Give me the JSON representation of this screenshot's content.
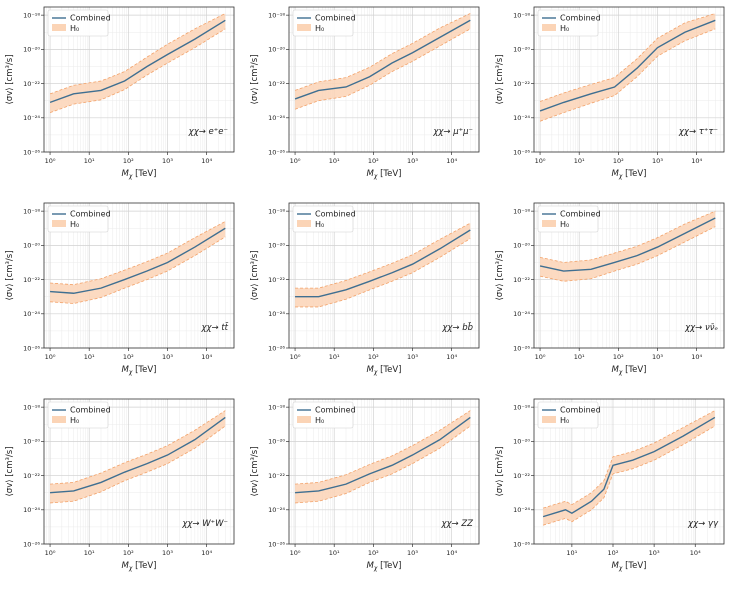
{
  "chart_data": [
    {
      "type": "line",
      "title": "",
      "channel": "χχ→ e⁺e⁻",
      "xlabel": "M_χ [TeV]",
      "ylabel": "⟨σv⟩ [cm³/s]",
      "xscale": "log",
      "yscale": "log",
      "xlim": [
        0.7,
        50000
      ],
      "ylim": [
        1e-26,
        3e-18
      ],
      "x_ticks": [
        "10⁰",
        "10¹",
        "10²",
        "10³",
        "10⁴"
      ],
      "y_ticks": [
        "10⁻²⁶",
        "10⁻²⁴",
        "10⁻²²",
        "10⁻²⁰",
        "10⁻¹⁸"
      ],
      "legend": [
        "Combined",
        "H₀"
      ],
      "legend_loc": "upper-left",
      "grid": true,
      "series": [
        {
          "name": "Combined",
          "x": [
            1,
            4,
            20,
            80,
            300,
            1000,
            5000,
            30000
          ],
          "y_log10": [
            -23.1,
            -22.6,
            -22.4,
            -21.85,
            -21.0,
            -20.3,
            -19.4,
            -18.3
          ]
        }
      ],
      "band": {
        "name": "H₀",
        "x": [
          1,
          4,
          20,
          80,
          300,
          1000,
          5000,
          30000
        ],
        "lower_log10": [
          -23.7,
          -23.2,
          -22.95,
          -22.35,
          -21.5,
          -20.8,
          -19.9,
          -18.8
        ],
        "upper_log10": [
          -22.6,
          -22.1,
          -21.85,
          -21.3,
          -20.45,
          -19.7,
          -18.8,
          -17.9
        ]
      }
    },
    {
      "type": "line",
      "title": "",
      "channel": "χχ→ μ⁺μ⁻",
      "xlabel": "M_χ [TeV]",
      "ylabel": "⟨σv⟩ [cm³/s]",
      "xscale": "log",
      "yscale": "log",
      "xlim": [
        0.7,
        50000
      ],
      "ylim": [
        1e-26,
        3e-18
      ],
      "x_ticks": [
        "10⁰",
        "10¹",
        "10²",
        "10³",
        "10⁴"
      ],
      "y_ticks": [
        "10⁻²⁶",
        "10⁻²⁴",
        "10⁻²²",
        "10⁻²⁰",
        "10⁻¹⁸"
      ],
      "legend": [
        "Combined",
        "H₀"
      ],
      "legend_loc": "upper-left",
      "grid": true,
      "series": [
        {
          "name": "Combined",
          "x": [
            1,
            4,
            20,
            80,
            300,
            1000,
            5000,
            30000
          ],
          "y_log10": [
            -22.9,
            -22.4,
            -22.2,
            -21.6,
            -20.8,
            -20.2,
            -19.3,
            -18.3
          ]
        }
      ],
      "band": {
        "name": "H₀",
        "x": [
          1,
          4,
          20,
          80,
          300,
          1000,
          5000,
          30000
        ],
        "lower_log10": [
          -23.5,
          -23.0,
          -22.75,
          -22.1,
          -21.3,
          -20.7,
          -19.8,
          -18.8
        ],
        "upper_log10": [
          -22.4,
          -21.9,
          -21.65,
          -21.05,
          -20.25,
          -19.65,
          -18.75,
          -17.9
        ]
      }
    },
    {
      "type": "line",
      "title": "",
      "channel": "χχ→ τ⁺τ⁻",
      "xlabel": "M_χ [TeV]",
      "ylabel": "⟨σv⟩ [cm³/s]",
      "xscale": "log",
      "yscale": "log",
      "xlim": [
        0.7,
        50000
      ],
      "ylim": [
        1e-26,
        3e-18
      ],
      "x_ticks": [
        "10⁰",
        "10¹",
        "10²",
        "10³",
        "10⁴"
      ],
      "y_ticks": [
        "10⁻²⁶",
        "10⁻²⁴",
        "10⁻²²",
        "10⁻²⁰",
        "10⁻¹⁸"
      ],
      "legend": [
        "Combined",
        "H₀"
      ],
      "legend_loc": "upper-left",
      "grid": true,
      "series": [
        {
          "name": "Combined",
          "x": [
            1,
            4,
            20,
            80,
            300,
            1000,
            5000,
            30000
          ],
          "y_log10": [
            -23.6,
            -23.1,
            -22.6,
            -22.2,
            -21.1,
            -19.9,
            -19.0,
            -18.3
          ]
        }
      ],
      "band": {
        "name": "H₀",
        "x": [
          1,
          4,
          20,
          80,
          300,
          1000,
          5000,
          30000
        ],
        "lower_log10": [
          -24.2,
          -23.7,
          -23.15,
          -22.7,
          -21.6,
          -20.4,
          -19.5,
          -18.8
        ],
        "upper_log10": [
          -23.05,
          -22.55,
          -22.05,
          -21.65,
          -20.55,
          -19.35,
          -18.45,
          -17.9
        ]
      }
    },
    {
      "type": "line",
      "title": "",
      "channel": "χχ→ tt̄",
      "xlabel": "M_χ [TeV]",
      "ylabel": "⟨σv⟩ [cm³/s]",
      "xscale": "log",
      "yscale": "log",
      "xlim": [
        0.7,
        50000
      ],
      "ylim": [
        1e-26,
        3e-18
      ],
      "x_ticks": [
        "10⁰",
        "10¹",
        "10²",
        "10³",
        "10⁴"
      ],
      "y_ticks": [
        "10⁻²⁶",
        "10⁻²⁴",
        "10⁻²²",
        "10⁻²⁰",
        "10⁻¹⁸"
      ],
      "legend": [
        "Combined",
        "H₀"
      ],
      "legend_loc": "upper-left",
      "grid": true,
      "series": [
        {
          "name": "Combined",
          "x": [
            1,
            4,
            20,
            80,
            300,
            1000,
            5000,
            30000
          ],
          "y_log10": [
            -22.7,
            -22.8,
            -22.5,
            -22.0,
            -21.5,
            -21.0,
            -20.1,
            -19.0
          ]
        }
      ],
      "band": {
        "name": "H₀",
        "x": [
          1,
          4,
          20,
          80,
          300,
          1000,
          5000,
          30000
        ],
        "lower_log10": [
          -23.3,
          -23.4,
          -23.05,
          -22.5,
          -22.0,
          -21.5,
          -20.6,
          -19.5
        ],
        "upper_log10": [
          -22.2,
          -22.3,
          -21.95,
          -21.45,
          -20.95,
          -20.45,
          -19.55,
          -18.6
        ]
      }
    },
    {
      "type": "line",
      "title": "",
      "channel": "χχ→ bb̄",
      "xlabel": "M_χ [TeV]",
      "ylabel": "⟨σv⟩ [cm³/s]",
      "xscale": "log",
      "yscale": "log",
      "xlim": [
        0.7,
        50000
      ],
      "ylim": [
        1e-26,
        3e-18
      ],
      "x_ticks": [
        "10⁰",
        "10¹",
        "10²",
        "10³",
        "10⁴"
      ],
      "y_ticks": [
        "10⁻²⁶",
        "10⁻²⁴",
        "10⁻²²",
        "10⁻²⁰",
        "10⁻¹⁸"
      ],
      "legend": [
        "Combined",
        "H₀"
      ],
      "legend_loc": "upper-left",
      "grid": true,
      "series": [
        {
          "name": "Combined",
          "x": [
            1,
            4,
            20,
            80,
            300,
            1000,
            5000,
            30000
          ],
          "y_log10": [
            -23.0,
            -23.0,
            -22.6,
            -22.1,
            -21.6,
            -21.1,
            -20.2,
            -19.1
          ]
        }
      ],
      "band": {
        "name": "H₀",
        "x": [
          1,
          4,
          20,
          80,
          300,
          1000,
          5000,
          30000
        ],
        "lower_log10": [
          -23.6,
          -23.6,
          -23.15,
          -22.6,
          -22.1,
          -21.6,
          -20.7,
          -19.6
        ],
        "upper_log10": [
          -22.5,
          -22.5,
          -22.05,
          -21.55,
          -21.05,
          -20.55,
          -19.65,
          -18.7
        ]
      }
    },
    {
      "type": "line",
      "title": "",
      "channel": "χχ→ νν̄ₑ",
      "xlabel": "M_χ [TeV]",
      "ylabel": "⟨σv⟩ [cm³/s]",
      "xscale": "log",
      "yscale": "log",
      "xlim": [
        0.7,
        50000
      ],
      "ylim": [
        1e-26,
        3e-18
      ],
      "x_ticks": [
        "10⁰",
        "10¹",
        "10²",
        "10³",
        "10⁴"
      ],
      "y_ticks": [
        "10⁻²⁶",
        "10⁻²⁴",
        "10⁻²²",
        "10⁻²⁰",
        "10⁻¹⁸"
      ],
      "legend": [
        "Combined",
        "H₀"
      ],
      "legend_loc": "upper-left",
      "grid": true,
      "series": [
        {
          "name": "Combined",
          "x": [
            1,
            4,
            20,
            80,
            300,
            1000,
            5000,
            30000
          ],
          "y_log10": [
            -21.2,
            -21.5,
            -21.4,
            -21.0,
            -20.6,
            -20.1,
            -19.3,
            -18.4
          ]
        }
      ],
      "band": {
        "name": "H₀",
        "x": [
          1,
          4,
          20,
          80,
          300,
          1000,
          5000,
          30000
        ],
        "lower_log10": [
          -21.8,
          -22.1,
          -21.95,
          -21.5,
          -21.1,
          -20.6,
          -19.8,
          -18.9
        ],
        "upper_log10": [
          -20.7,
          -21.0,
          -20.85,
          -20.45,
          -20.05,
          -19.55,
          -18.75,
          -18.0
        ]
      }
    },
    {
      "type": "line",
      "title": "",
      "channel": "χχ→ W⁺W⁻",
      "xlabel": "M_χ [TeV]",
      "ylabel": "⟨σv⟩ [cm³/s]",
      "xscale": "log",
      "yscale": "log",
      "xlim": [
        0.7,
        50000
      ],
      "ylim": [
        1e-26,
        3e-18
      ],
      "x_ticks": [
        "10⁰",
        "10¹",
        "10²",
        "10³",
        "10⁴"
      ],
      "y_ticks": [
        "10⁻²⁶",
        "10⁻²⁴",
        "10⁻²²",
        "10⁻²⁰",
        "10⁻¹⁸"
      ],
      "legend": [
        "Combined",
        "H₀"
      ],
      "legend_loc": "upper-left",
      "grid": true,
      "series": [
        {
          "name": "Combined",
          "x": [
            1,
            4,
            20,
            80,
            300,
            1000,
            5000,
            30000
          ],
          "y_log10": [
            -23.0,
            -22.9,
            -22.4,
            -21.8,
            -21.3,
            -20.8,
            -19.9,
            -18.6
          ]
        }
      ],
      "band": {
        "name": "H₀",
        "x": [
          1,
          4,
          20,
          80,
          300,
          1000,
          5000,
          30000
        ],
        "lower_log10": [
          -23.6,
          -23.5,
          -22.95,
          -22.3,
          -21.8,
          -21.3,
          -20.4,
          -19.1
        ],
        "upper_log10": [
          -22.5,
          -22.4,
          -21.85,
          -21.25,
          -20.75,
          -20.25,
          -19.35,
          -18.2
        ]
      }
    },
    {
      "type": "line",
      "title": "",
      "channel": "χχ→ ZZ",
      "xlabel": "M_χ [TeV]",
      "ylabel": "⟨σv⟩ [cm³/s]",
      "xscale": "log",
      "yscale": "log",
      "xlim": [
        0.7,
        50000
      ],
      "ylim": [
        1e-26,
        3e-18
      ],
      "x_ticks": [
        "10⁰",
        "10¹",
        "10²",
        "10³",
        "10⁴"
      ],
      "y_ticks": [
        "10⁻²⁶",
        "10⁻²⁴",
        "10⁻²²",
        "10⁻²⁰",
        "10⁻¹⁸"
      ],
      "legend": [
        "Combined",
        "H₀"
      ],
      "legend_loc": "upper-left",
      "grid": true,
      "series": [
        {
          "name": "Combined",
          "x": [
            1,
            4,
            20,
            80,
            300,
            1000,
            5000,
            30000
          ],
          "y_log10": [
            -23.0,
            -22.9,
            -22.5,
            -21.9,
            -21.4,
            -20.8,
            -19.9,
            -18.6
          ]
        }
      ],
      "band": {
        "name": "H₀",
        "x": [
          1,
          4,
          20,
          80,
          300,
          1000,
          5000,
          30000
        ],
        "lower_log10": [
          -23.6,
          -23.5,
          -23.05,
          -22.4,
          -21.9,
          -21.3,
          -20.4,
          -19.1
        ],
        "upper_log10": [
          -22.5,
          -22.4,
          -21.95,
          -21.35,
          -20.85,
          -20.25,
          -19.35,
          -18.2
        ]
      }
    },
    {
      "type": "line",
      "title": "",
      "channel": "χχ→ γγ",
      "xlabel": "M_χ [TeV]",
      "ylabel": "⟨σv⟩ [cm³/s]",
      "xscale": "log",
      "yscale": "log",
      "xlim": [
        1.2,
        50000
      ],
      "ylim": [
        1e-26,
        3e-18
      ],
      "x_ticks": [
        "10¹",
        "10²",
        "10³",
        "10⁴"
      ],
      "y_ticks": [
        "10⁻²⁶",
        "10⁻²⁴",
        "10⁻²²",
        "10⁻²⁰",
        "10⁻¹⁸"
      ],
      "legend": [
        "Combined",
        "H₀"
      ],
      "legend_loc": "upper-left",
      "grid": true,
      "series": [
        {
          "name": "Combined",
          "x": [
            2,
            7,
            10,
            30,
            60,
            100,
            300,
            1000,
            5000,
            30000
          ],
          "y_log10": [
            -24.4,
            -24.0,
            -24.2,
            -23.5,
            -22.8,
            -21.4,
            -21.1,
            -20.6,
            -19.7,
            -18.6
          ]
        }
      ],
      "band": {
        "name": "H₀",
        "x": [
          2,
          7,
          10,
          30,
          60,
          100,
          300,
          1000,
          5000,
          30000
        ],
        "lower_log10": [
          -24.9,
          -24.5,
          -24.7,
          -24.0,
          -23.3,
          -21.9,
          -21.6,
          -21.1,
          -20.2,
          -19.1
        ],
        "upper_log10": [
          -23.9,
          -23.5,
          -23.7,
          -23.0,
          -22.3,
          -20.9,
          -20.6,
          -20.1,
          -19.2,
          -18.2
        ]
      }
    }
  ]
}
